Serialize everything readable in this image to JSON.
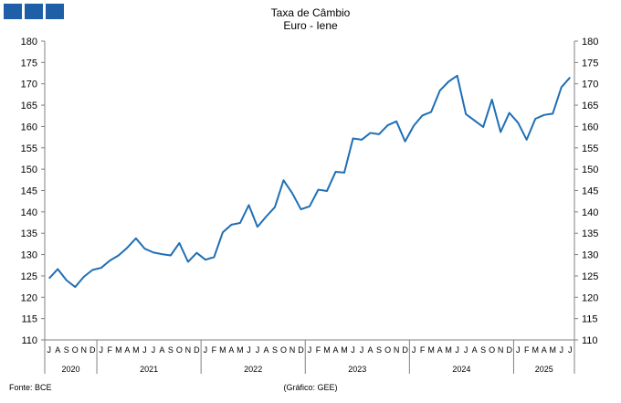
{
  "title_lines": [
    "Taxa de Câmbio",
    "Euro - Iene"
  ],
  "source": "Fonte: BCE",
  "credit": "(Gráfico: GEE)",
  "colors": {
    "line": "#1f6fb5",
    "logo": "#1f5fa8",
    "axis": "#808080"
  },
  "chart_data": {
    "type": "line",
    "title": "Taxa de Câmbio Euro - Iene",
    "xlabel": "",
    "ylabel": "",
    "ylim": [
      110,
      180
    ],
    "yticks": [
      110,
      115,
      120,
      125,
      130,
      135,
      140,
      145,
      150,
      155,
      160,
      165,
      170,
      175,
      180
    ],
    "grid": false,
    "legend": "none",
    "month_labels": [
      "J",
      "A",
      "S",
      "O",
      "N",
      "D",
      "J",
      "F",
      "M",
      "A",
      "M",
      "J",
      "J",
      "A",
      "S",
      "O",
      "N",
      "D",
      "J",
      "F",
      "M",
      "A",
      "M",
      "J",
      "J",
      "A",
      "S",
      "O",
      "N",
      "D",
      "J",
      "F",
      "M",
      "A",
      "M",
      "J",
      "J",
      "A",
      "S",
      "O",
      "N",
      "D",
      "J",
      "F",
      "M",
      "A",
      "M",
      "J",
      "J",
      "A",
      "S",
      "O",
      "N",
      "D",
      "J",
      "F",
      "M",
      "A",
      "M",
      "J",
      "J"
    ],
    "years": [
      {
        "label": "2020",
        "months": 6
      },
      {
        "label": "2021",
        "months": 12
      },
      {
        "label": "2022",
        "months": 12
      },
      {
        "label": "2023",
        "months": 12
      },
      {
        "label": "2024",
        "months": 12
      },
      {
        "label": "2025",
        "months": 7
      }
    ],
    "series": [
      {
        "values": [
          124.4,
          126.6,
          124.0,
          122.4,
          124.8,
          126.4,
          126.9,
          128.6,
          129.8,
          131.6,
          133.8,
          131.4,
          130.5,
          130.1,
          129.8,
          132.7,
          128.3,
          130.4,
          128.8,
          129.4,
          135.2,
          137.0,
          137.4,
          141.6,
          136.5,
          138.9,
          141.1,
          147.4,
          144.4,
          140.6,
          141.3,
          145.2,
          144.9,
          149.4,
          149.2,
          157.2,
          156.9,
          158.5,
          158.2,
          160.3,
          161.2,
          156.5,
          160.2,
          162.6,
          163.4,
          168.4,
          170.5,
          171.9,
          162.9,
          161.4,
          159.9,
          166.3,
          158.7,
          163.2,
          160.9,
          156.9,
          161.8,
          162.7,
          163.0,
          169.2,
          171.5
        ]
      }
    ]
  }
}
